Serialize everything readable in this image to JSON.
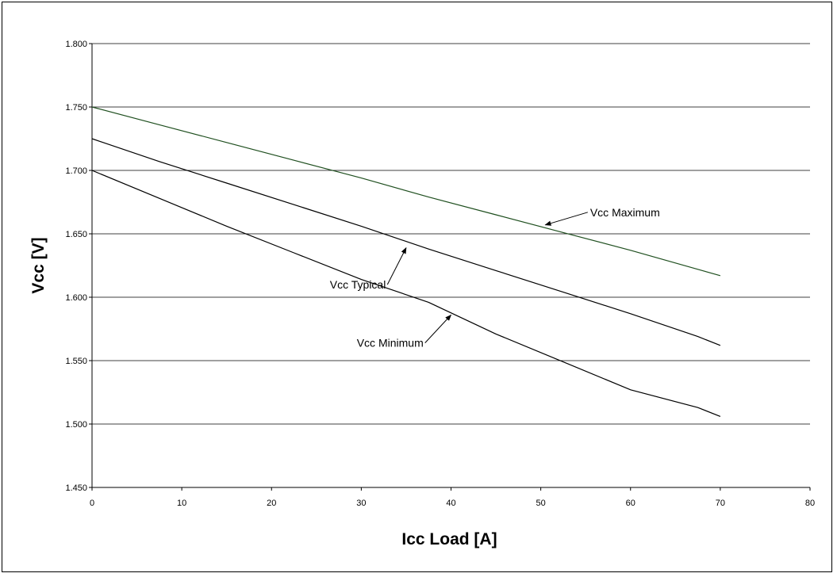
{
  "chart_data": {
    "type": "line",
    "title": "",
    "xlabel": "Icc Load [A]",
    "ylabel": "Vcc [V]",
    "xlim": [
      0,
      80
    ],
    "ylim": [
      1.45,
      1.8
    ],
    "x_ticks": [
      "0",
      "10",
      "20",
      "30",
      "40",
      "50",
      "60",
      "70",
      "80"
    ],
    "y_ticks": [
      "1.450",
      "1.500",
      "1.550",
      "1.600",
      "1.650",
      "1.700",
      "1.750",
      "1.800"
    ],
    "grid": "horizontal",
    "series": [
      {
        "name": "Vcc Maximum",
        "color": "#1f4f1f",
        "x": [
          0,
          7.5,
          15,
          22.5,
          30,
          37.5,
          45,
          52.5,
          60,
          67.5,
          70
        ],
        "y": [
          1.75,
          1.736,
          1.722,
          1.708,
          1.694,
          1.679,
          1.665,
          1.651,
          1.637,
          1.622,
          1.617
        ]
      },
      {
        "name": "Vcc Typical",
        "color": "#000000",
        "x": [
          0,
          7.5,
          15,
          22.5,
          30,
          37.5,
          45,
          52.5,
          60,
          67.5,
          70
        ],
        "y": [
          1.725,
          1.707,
          1.69,
          1.673,
          1.656,
          1.638,
          1.621,
          1.604,
          1.587,
          1.569,
          1.562
        ]
      },
      {
        "name": "Vcc Minimum",
        "color": "#000000",
        "x": [
          0,
          7.5,
          15,
          22.5,
          30,
          37.5,
          45,
          52.5,
          60,
          67.5,
          70
        ],
        "y": [
          1.7,
          1.678,
          1.656,
          1.635,
          1.614,
          1.596,
          1.571,
          1.549,
          1.527,
          1.513,
          1.506
        ]
      }
    ],
    "annotations": [
      {
        "text": "Vcc Maximum",
        "series": "Vcc Maximum",
        "arrow_to": [
          50.5,
          1.657
        ],
        "label_at": [
          55.5,
          1.667
        ]
      },
      {
        "text": "Vcc Typical",
        "series": "Vcc Typical",
        "arrow_to": [
          35,
          1.639
        ],
        "label_at": [
          26.5,
          1.61
        ]
      },
      {
        "text": "Vcc Minimum",
        "series": "Vcc Minimum",
        "arrow_to": [
          40,
          1.586
        ],
        "label_at": [
          29.5,
          1.564
        ]
      }
    ]
  }
}
